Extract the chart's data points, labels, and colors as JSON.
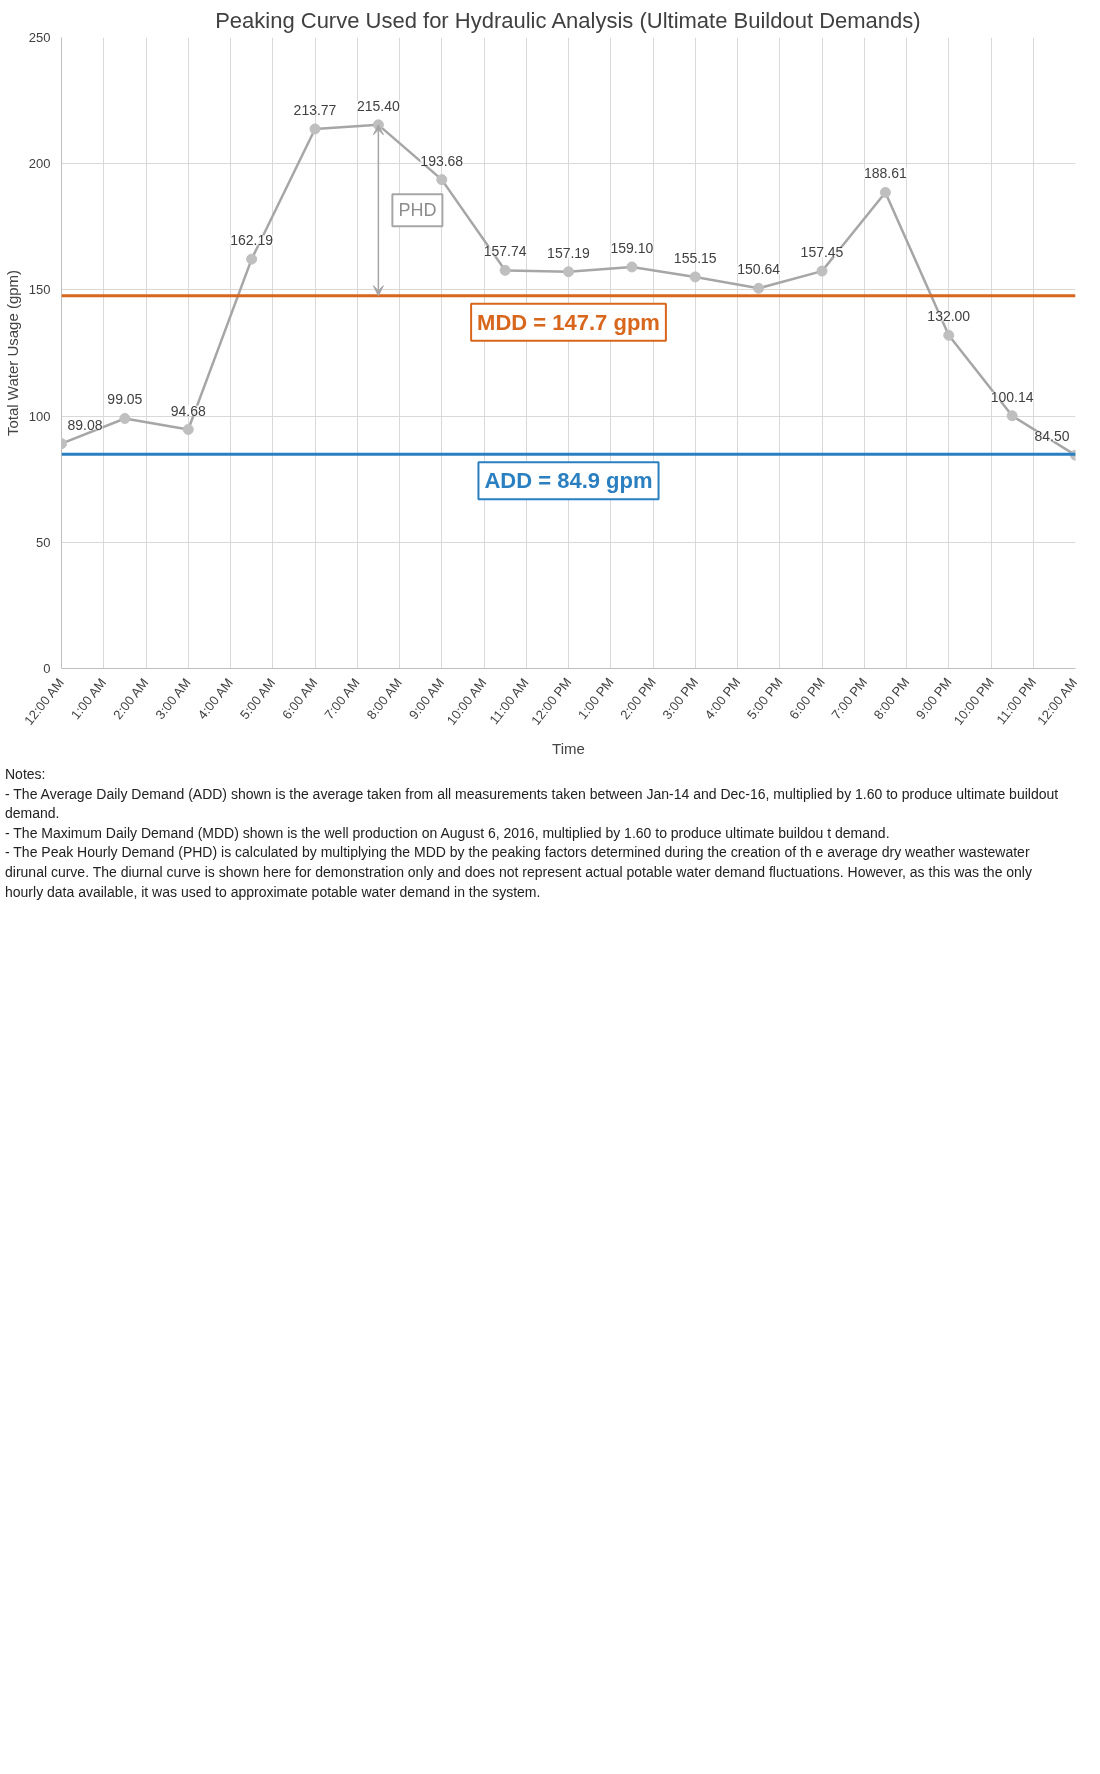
{
  "chart_data": {
    "type": "line",
    "title": "Peaking Curve Used for Hydraulic Analysis (Ultimate Buildout Demands)",
    "xlabel": "Time",
    "ylabel": "Total Water Usage (gpm)",
    "x": [
      0,
      1.5,
      3,
      4.5,
      6,
      7.5,
      9,
      10.5,
      12,
      13.5,
      15,
      16.5,
      18,
      19.5,
      21,
      22.5,
      24
    ],
    "series": [
      {
        "color": "#a6a6a6",
        "values": [
          89.08,
          99.05,
          94.68,
          162.19,
          213.77,
          215.4,
          193.68,
          157.74,
          157.19,
          159.1,
          155.15,
          150.64,
          157.45,
          188.61,
          132.0,
          100.14,
          84.5
        ]
      }
    ],
    "xlim": [
      0,
      24
    ],
    "xticks": [
      {
        "value": 0,
        "label": "12:00 AM"
      },
      {
        "value": 1,
        "label": "1:00 AM"
      },
      {
        "value": 2,
        "label": "2:00 AM"
      },
      {
        "value": 3,
        "label": "3:00 AM"
      },
      {
        "value": 4,
        "label": "4:00 AM"
      },
      {
        "value": 5,
        "label": "5:00 AM"
      },
      {
        "value": 6,
        "label": "6:00 AM"
      },
      {
        "value": 7,
        "label": "7:00 AM"
      },
      {
        "value": 8,
        "label": "8:00 AM"
      },
      {
        "value": 9,
        "label": "9:00 AM"
      },
      {
        "value": 10,
        "label": "10:00 AM"
      },
      {
        "value": 11,
        "label": "11:00 AM"
      },
      {
        "value": 12,
        "label": "12:00 PM"
      },
      {
        "value": 13,
        "label": "1:00 PM"
      },
      {
        "value": 14,
        "label": "2:00 PM"
      },
      {
        "value": 15,
        "label": "3:00 PM"
      },
      {
        "value": 16,
        "label": "4:00 PM"
      },
      {
        "value": 17,
        "label": "5:00 PM"
      },
      {
        "value": 18,
        "label": "6:00 PM"
      },
      {
        "value": 19,
        "label": "7:00 PM"
      },
      {
        "value": 20,
        "label": "8:00 PM"
      },
      {
        "value": 21,
        "label": "9:00 PM"
      },
      {
        "value": 22,
        "label": "10:00 PM"
      },
      {
        "value": 23,
        "label": "11:00 PM"
      },
      {
        "value": 24,
        "label": "12:00 AM"
      }
    ],
    "value_labels": [
      "89.08",
      "99.05",
      "94.68",
      "162.19",
      "213.77",
      "215.40",
      "193.68",
      "157.74",
      "157.19",
      "159.10",
      "155.15",
      "150.64",
      "157.45",
      "188.61",
      "132.00",
      "100.14",
      "84.50"
    ],
    "ylim": [
      0,
      250
    ],
    "yticks": [
      0,
      50,
      100,
      150,
      200,
      250
    ],
    "grid": true,
    "marker": "circle",
    "ref_lines": [
      {
        "axis": "y",
        "value": 147.7,
        "label": "MDD = 147.7 gpm",
        "color": "#d8661c"
      },
      {
        "axis": "y",
        "value": 84.9,
        "label": "ADD = 84.9 gpm",
        "color": "#2a7fc1"
      }
    ],
    "annotations": [
      "PHD",
      "Notes:",
      "- The Average Daily Demand (ADD) shown is the average taken from all measurements taken between Jan-14 and Dec-16, multiplied by 1.60 to produce ultimate buildout demand.",
      "- The Maximum Daily Demand (MDD) shown is the well production on August 6, 2016, multiplied by 1.60 to produce ultimate buildou t demand.",
      "- The Peak Hourly Demand (PHD) is calculated by multiplying the MDD by the peaking factors determined during the creation of th e average dry weather wastewater dirunal curve.  The diurnal curve is shown here for demonstration only and does not represent  actual potable water demand fluctuations.  However, as this was the only hourly data available, it was used to approximate potable water demand in the system."
    ]
  }
}
